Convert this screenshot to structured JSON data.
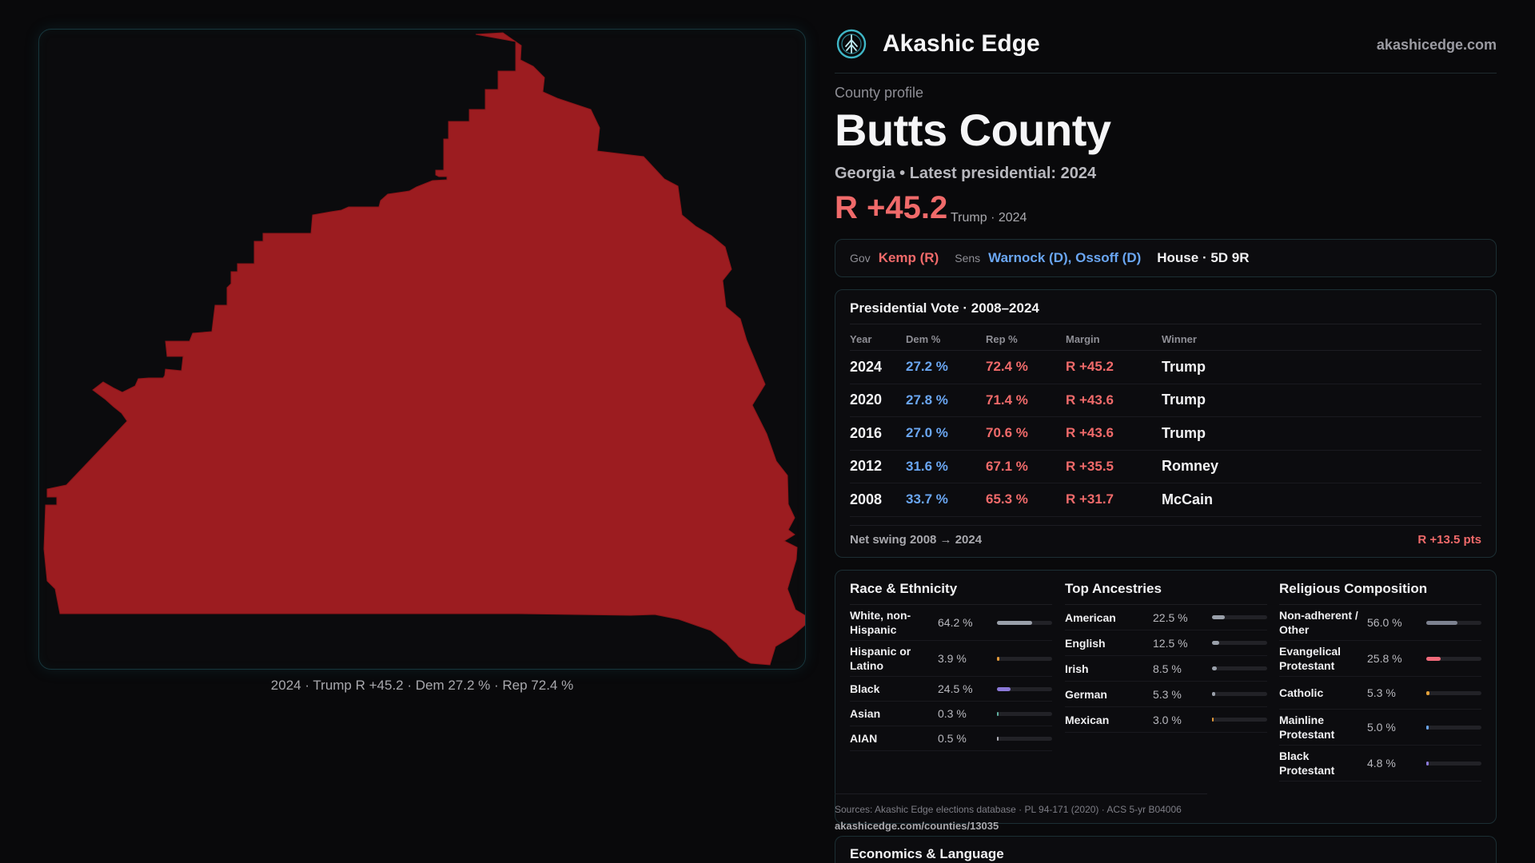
{
  "map": {
    "caption": "2024 · Trump R +45.2 · Dem 27.2 % · Rep 72.4 %",
    "fill_color": "#9c1c20"
  },
  "brand": {
    "name": "Akashic Edge",
    "url": "akashicedge.com",
    "logo_icon": "tree-emblem-icon"
  },
  "profile": {
    "eyebrow": "County profile",
    "title": "Butts County",
    "subtitle": "Georgia • Latest presidential: 2024",
    "margin": "R +45.2",
    "margin_note": "Trump · 2024"
  },
  "officials": {
    "gov_label": "Gov",
    "gov": "Kemp (R)",
    "sens_label": "Sens",
    "sens": "Warnock (D), Ossoff (D)",
    "house": "House · 5D 9R"
  },
  "presidential": {
    "title": "Presidential Vote · 2008–2024",
    "headers": [
      "Year",
      "Dem %",
      "Rep %",
      "Margin",
      "Winner"
    ],
    "rows": [
      {
        "year": "2024",
        "dem": "27.2 %",
        "rep": "72.4 %",
        "margin": "R +45.2",
        "winner": "Trump"
      },
      {
        "year": "2020",
        "dem": "27.8 %",
        "rep": "71.4 %",
        "margin": "R +43.6",
        "winner": "Trump"
      },
      {
        "year": "2016",
        "dem": "27.0 %",
        "rep": "70.6 %",
        "margin": "R +43.6",
        "winner": "Trump"
      },
      {
        "year": "2012",
        "dem": "31.6 %",
        "rep": "67.1 %",
        "margin": "R +35.5",
        "winner": "Romney"
      },
      {
        "year": "2008",
        "dem": "33.7 %",
        "rep": "65.3 %",
        "margin": "R +31.7",
        "winner": "McCain"
      }
    ],
    "swing_label": "Net swing 2008 → 2024",
    "swing_value": "R +13.5 pts"
  },
  "demographics": {
    "race": {
      "title": "Race & Ethnicity",
      "items": [
        {
          "label": "White, non-Hispanic",
          "value": "64.2 %",
          "pct": 64.2,
          "color": "#9aa0aa"
        },
        {
          "label": "Hispanic or Latino",
          "value": "3.9 %",
          "pct": 3.9,
          "color": "#e39a3a"
        },
        {
          "label": "Black",
          "value": "24.5 %",
          "pct": 24.5,
          "color": "#8b79d8"
        },
        {
          "label": "Asian",
          "value": "0.3 %",
          "pct": 0.3,
          "color": "#5fb0a0"
        },
        {
          "label": "AIAN",
          "value": "0.5 %",
          "pct": 0.5,
          "color": "#b0b0b8"
        }
      ]
    },
    "ancestry": {
      "title": "Top Ancestries",
      "items": [
        {
          "label": "American",
          "value": "22.5 %",
          "pct": 22.5,
          "color": "#9aa0aa"
        },
        {
          "label": "English",
          "value": "12.5 %",
          "pct": 12.5,
          "color": "#9aa0aa"
        },
        {
          "label": "Irish",
          "value": "8.5 %",
          "pct": 8.5,
          "color": "#9aa0aa"
        },
        {
          "label": "German",
          "value": "5.3 %",
          "pct": 5.3,
          "color": "#9aa0aa"
        },
        {
          "label": "Mexican",
          "value": "3.0 %",
          "pct": 3.0,
          "color": "#e39a3a"
        }
      ]
    },
    "religion": {
      "title": "Religious Composition",
      "items": [
        {
          "label": "Non-adherent / Other",
          "value": "56.0 %",
          "pct": 56.0,
          "color": "#7d8290"
        },
        {
          "label": "Evangelical Protestant",
          "value": "25.8 %",
          "pct": 25.8,
          "color": "#f06a7a"
        },
        {
          "label": "Catholic",
          "value": "5.3 %",
          "pct": 5.3,
          "color": "#e3a23a"
        },
        {
          "label": "Mainline Protestant",
          "value": "5.0 %",
          "pct": 5.0,
          "color": "#6aa6f2"
        },
        {
          "label": "Black Protestant",
          "value": "4.8 %",
          "pct": 4.8,
          "color": "#8b79d8"
        }
      ]
    }
  },
  "sources": {
    "text": "Sources: Akashic Edge elections database · PL 94-171 (2020) · ACS 5-yr B04006",
    "url": "akashicedge.com/counties/13035"
  },
  "economics": {
    "title": "Economics & Language"
  }
}
